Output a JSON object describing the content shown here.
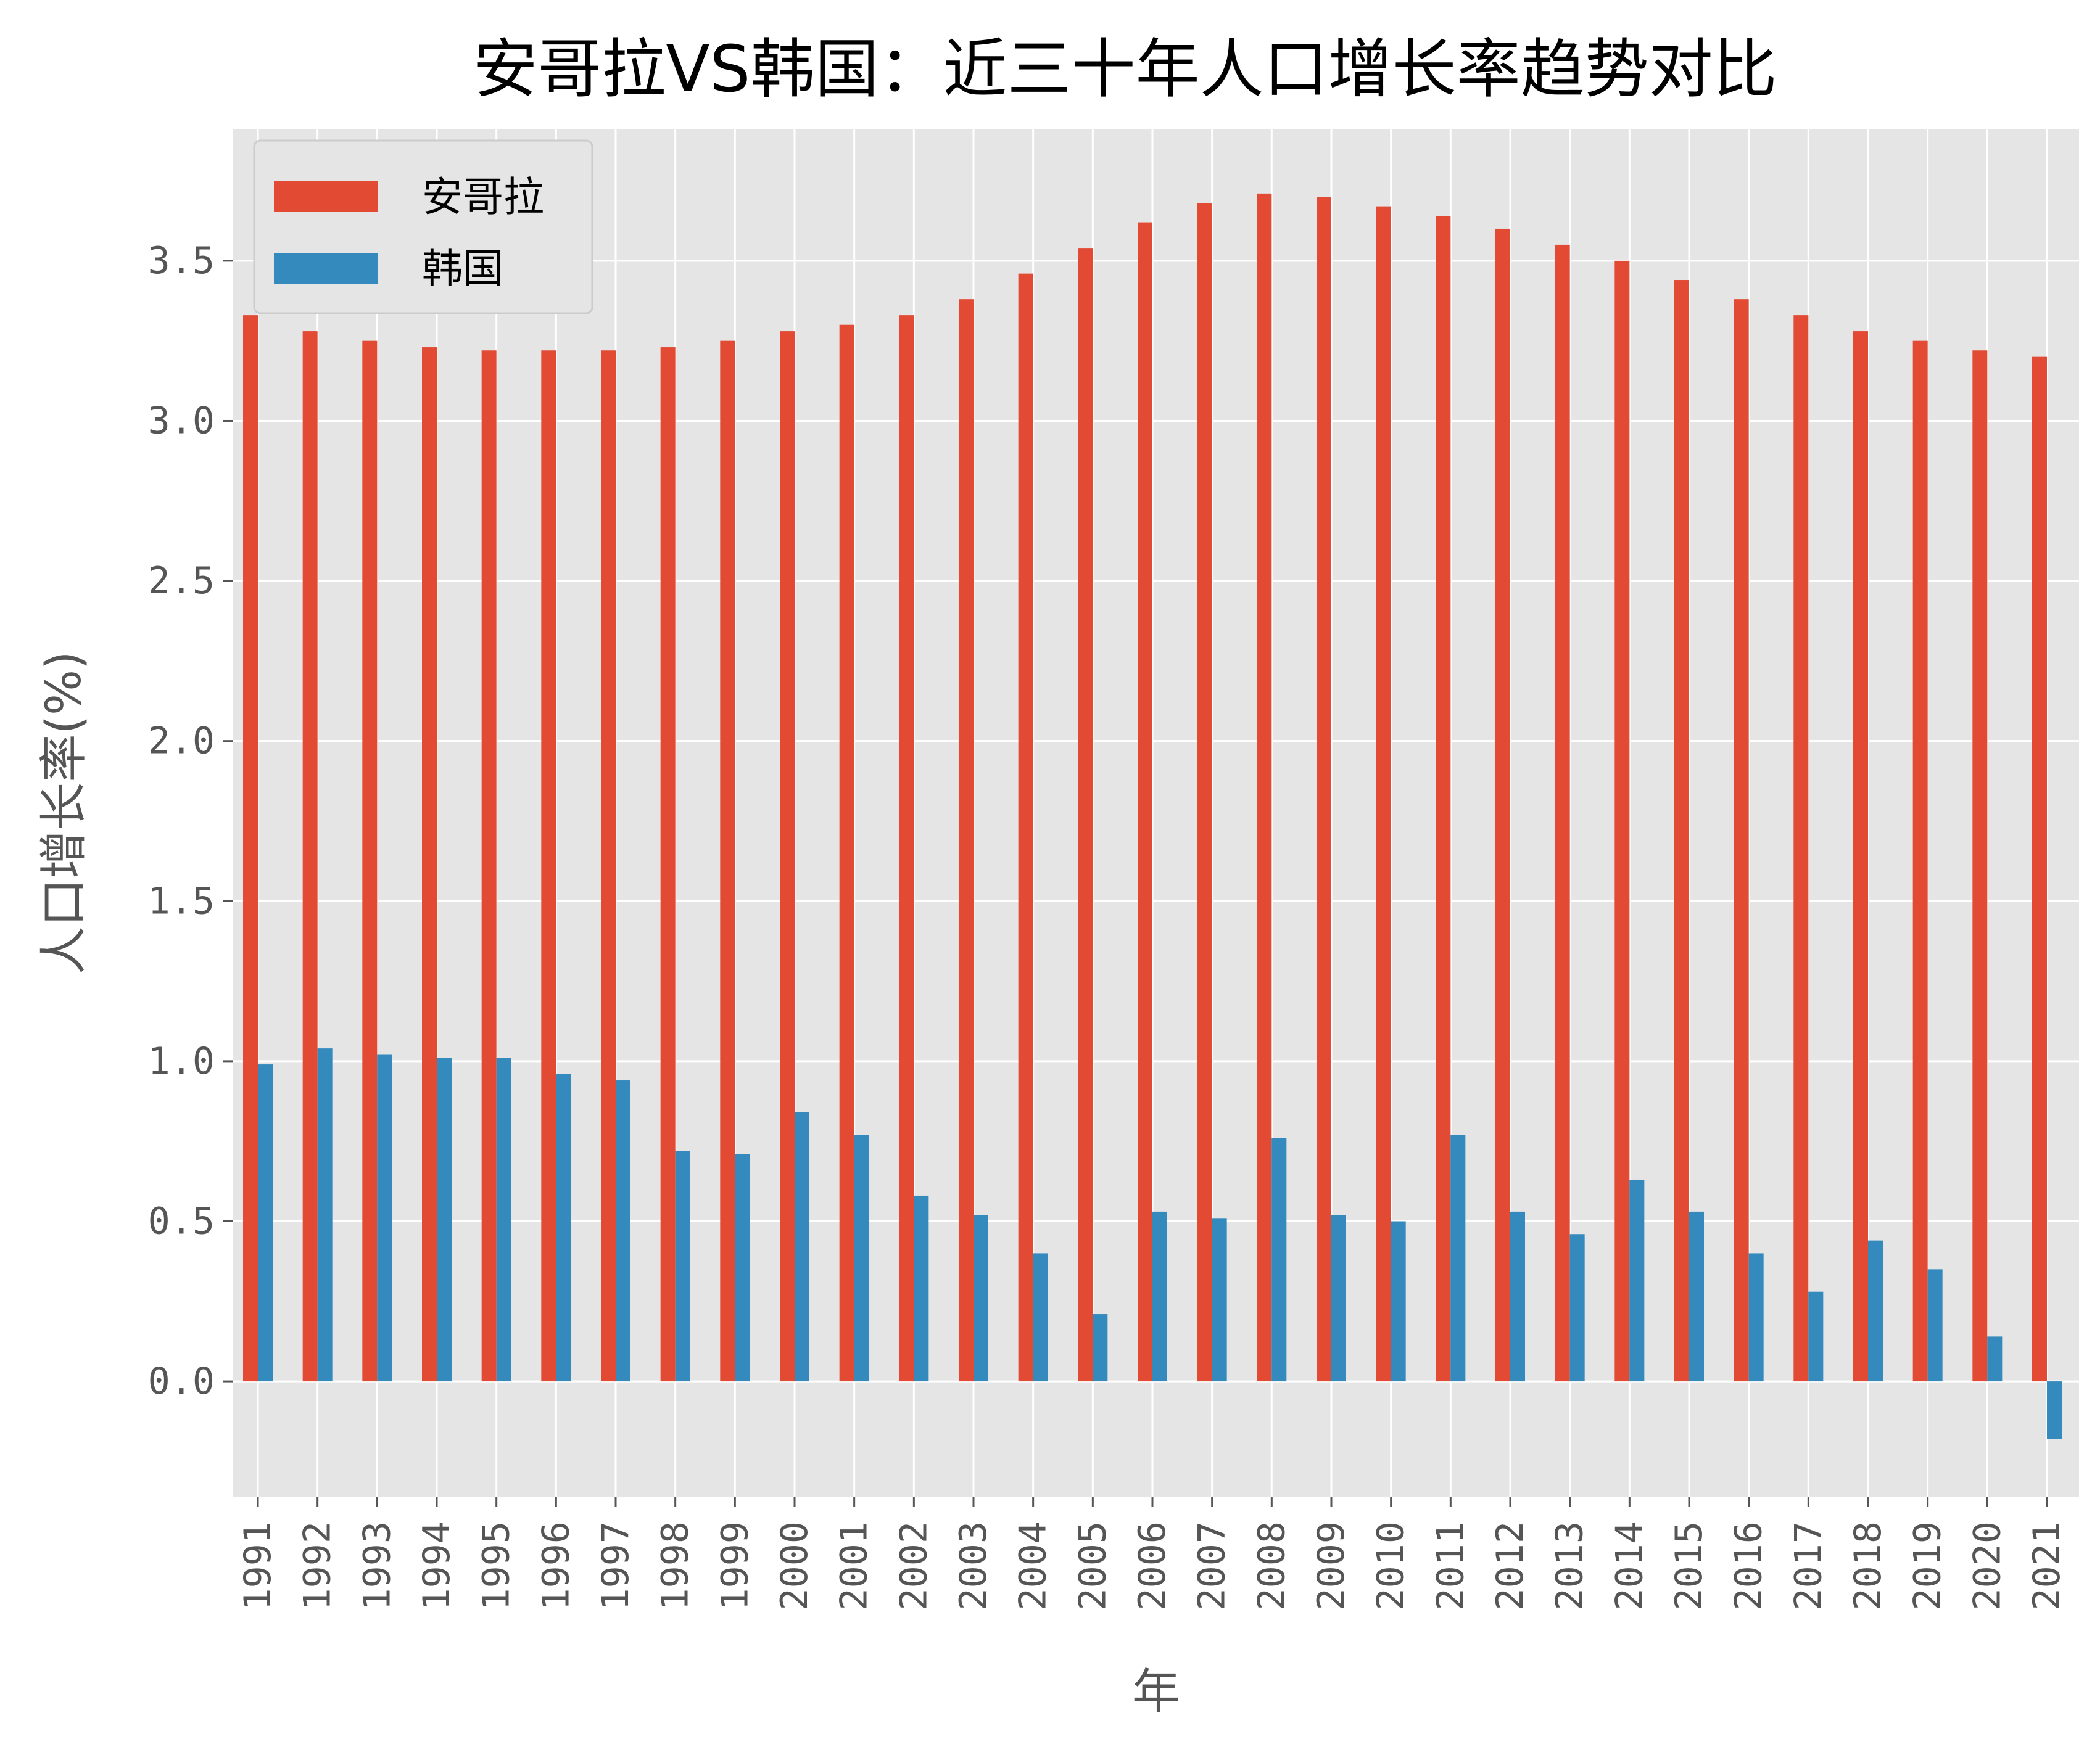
{
  "chart_data": {
    "type": "bar",
    "title": "安哥拉VS韩国：近三十年人口增长率趋势对比",
    "xlabel": "年",
    "ylabel": "人口增长率(%)",
    "ylim": [
      -0.36,
      3.91
    ],
    "yticks": [
      "0.0",
      "0.5",
      "1.0",
      "1.5",
      "2.0",
      "2.5",
      "3.0",
      "3.5"
    ],
    "grid": true,
    "legend_position": "top-left",
    "categories": [
      "1991",
      "1992",
      "1993",
      "1994",
      "1995",
      "1996",
      "1997",
      "1998",
      "1999",
      "2000",
      "2001",
      "2002",
      "2003",
      "2004",
      "2005",
      "2006",
      "2007",
      "2008",
      "2009",
      "2010",
      "2011",
      "2012",
      "2013",
      "2014",
      "2015",
      "2016",
      "2017",
      "2018",
      "2019",
      "2020",
      "2021"
    ],
    "series": [
      {
        "name": "安哥拉",
        "color": "#E24A33",
        "values": [
          3.33,
          3.28,
          3.25,
          3.23,
          3.22,
          3.22,
          3.22,
          3.23,
          3.25,
          3.28,
          3.3,
          3.33,
          3.38,
          3.46,
          3.54,
          3.62,
          3.68,
          3.71,
          3.7,
          3.67,
          3.64,
          3.6,
          3.55,
          3.5,
          3.44,
          3.38,
          3.33,
          3.28,
          3.25,
          3.22,
          3.2
        ]
      },
      {
        "name": "韩国",
        "color": "#348ABD",
        "values": [
          0.99,
          1.04,
          1.02,
          1.01,
          1.01,
          0.96,
          0.94,
          0.72,
          0.71,
          0.84,
          0.77,
          0.58,
          0.52,
          0.4,
          0.21,
          0.53,
          0.51,
          0.76,
          0.52,
          0.5,
          0.77,
          0.53,
          0.46,
          0.63,
          0.53,
          0.4,
          0.28,
          0.44,
          0.35,
          0.14,
          -0.18
        ]
      }
    ]
  }
}
